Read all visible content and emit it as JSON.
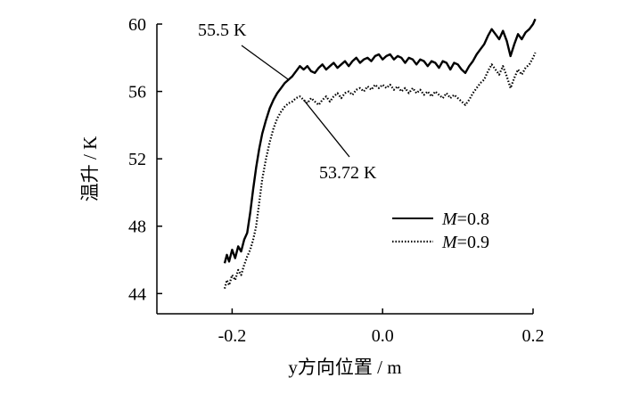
{
  "chart_data": {
    "type": "line",
    "title": "",
    "xlabel": "y方向位置 / m",
    "ylabel": "温升 / K",
    "xlim": [
      -0.3,
      0.2
    ],
    "ylim": [
      42.8,
      60
    ],
    "x_ticks": [
      -0.2,
      0.0,
      0.2
    ],
    "x_tick_labels": [
      "-0.2",
      "0.0",
      "0.2"
    ],
    "y_ticks": [
      44,
      48,
      52,
      56,
      60
    ],
    "y_tick_labels": [
      "44",
      "48",
      "52",
      "56",
      "60"
    ],
    "grid": false,
    "legend_position": "right",
    "series": [
      {
        "name": "M=0.8",
        "name_italic": "M",
        "name_rest": "=0.8",
        "style": "solid",
        "color": "#000000",
        "points": [
          [
            -0.21,
            45.8
          ],
          [
            -0.207,
            46.3
          ],
          [
            -0.204,
            45.9
          ],
          [
            -0.2,
            46.6
          ],
          [
            -0.196,
            46.1
          ],
          [
            -0.192,
            46.8
          ],
          [
            -0.188,
            46.5
          ],
          [
            -0.184,
            47.2
          ],
          [
            -0.18,
            47.6
          ],
          [
            -0.176,
            48.8
          ],
          [
            -0.172,
            50.2
          ],
          [
            -0.168,
            51.5
          ],
          [
            -0.164,
            52.6
          ],
          [
            -0.16,
            53.5
          ],
          [
            -0.155,
            54.3
          ],
          [
            -0.15,
            55.0
          ],
          [
            -0.145,
            55.5
          ],
          [
            -0.14,
            55.9
          ],
          [
            -0.135,
            56.2
          ],
          [
            -0.13,
            56.5
          ],
          [
            -0.125,
            56.7
          ],
          [
            -0.12,
            56.9
          ],
          [
            -0.115,
            57.2
          ],
          [
            -0.11,
            57.5
          ],
          [
            -0.105,
            57.3
          ],
          [
            -0.1,
            57.5
          ],
          [
            -0.095,
            57.2
          ],
          [
            -0.09,
            57.1
          ],
          [
            -0.085,
            57.4
          ],
          [
            -0.08,
            57.6
          ],
          [
            -0.075,
            57.3
          ],
          [
            -0.07,
            57.5
          ],
          [
            -0.065,
            57.7
          ],
          [
            -0.06,
            57.4
          ],
          [
            -0.055,
            57.6
          ],
          [
            -0.05,
            57.8
          ],
          [
            -0.045,
            57.5
          ],
          [
            -0.04,
            57.8
          ],
          [
            -0.035,
            58.0
          ],
          [
            -0.03,
            57.7
          ],
          [
            -0.025,
            57.9
          ],
          [
            -0.02,
            58.0
          ],
          [
            -0.015,
            57.8
          ],
          [
            -0.01,
            58.1
          ],
          [
            -0.005,
            58.2
          ],
          [
            0.0,
            57.9
          ],
          [
            0.005,
            58.1
          ],
          [
            0.01,
            58.2
          ],
          [
            0.015,
            57.9
          ],
          [
            0.02,
            58.1
          ],
          [
            0.025,
            58.0
          ],
          [
            0.03,
            57.7
          ],
          [
            0.035,
            58.0
          ],
          [
            0.04,
            57.9
          ],
          [
            0.045,
            57.6
          ],
          [
            0.05,
            57.9
          ],
          [
            0.055,
            57.8
          ],
          [
            0.06,
            57.5
          ],
          [
            0.065,
            57.8
          ],
          [
            0.07,
            57.7
          ],
          [
            0.075,
            57.4
          ],
          [
            0.08,
            57.8
          ],
          [
            0.085,
            57.7
          ],
          [
            0.09,
            57.3
          ],
          [
            0.095,
            57.7
          ],
          [
            0.1,
            57.6
          ],
          [
            0.105,
            57.3
          ],
          [
            0.11,
            57.1
          ],
          [
            0.115,
            57.5
          ],
          [
            0.12,
            57.8
          ],
          [
            0.125,
            58.2
          ],
          [
            0.13,
            58.5
          ],
          [
            0.135,
            58.8
          ],
          [
            0.14,
            59.3
          ],
          [
            0.145,
            59.7
          ],
          [
            0.15,
            59.4
          ],
          [
            0.155,
            59.1
          ],
          [
            0.16,
            59.6
          ],
          [
            0.165,
            59.0
          ],
          [
            0.17,
            58.1
          ],
          [
            0.175,
            58.8
          ],
          [
            0.18,
            59.4
          ],
          [
            0.185,
            59.1
          ],
          [
            0.19,
            59.5
          ],
          [
            0.195,
            59.7
          ],
          [
            0.2,
            60.0
          ],
          [
            0.203,
            60.3
          ]
        ]
      },
      {
        "name": "M=0.9",
        "name_italic": "M",
        "name_rest": "=0.9",
        "style": "dotted",
        "color": "#000000",
        "points": [
          [
            -0.21,
            44.3
          ],
          [
            -0.207,
            44.8
          ],
          [
            -0.204,
            44.5
          ],
          [
            -0.2,
            45.1
          ],
          [
            -0.196,
            44.8
          ],
          [
            -0.192,
            45.4
          ],
          [
            -0.188,
            45.1
          ],
          [
            -0.184,
            45.7
          ],
          [
            -0.18,
            46.2
          ],
          [
            -0.176,
            46.6
          ],
          [
            -0.172,
            47.2
          ],
          [
            -0.168,
            48.0
          ],
          [
            -0.164,
            49.4
          ],
          [
            -0.16,
            50.8
          ],
          [
            -0.155,
            52.0
          ],
          [
            -0.15,
            53.0
          ],
          [
            -0.145,
            53.8
          ],
          [
            -0.14,
            54.4
          ],
          [
            -0.135,
            54.8
          ],
          [
            -0.13,
            55.1
          ],
          [
            -0.125,
            55.3
          ],
          [
            -0.12,
            55.4
          ],
          [
            -0.115,
            55.6
          ],
          [
            -0.11,
            55.7
          ],
          [
            -0.105,
            55.5
          ],
          [
            -0.1,
            55.3
          ],
          [
            -0.095,
            55.6
          ],
          [
            -0.09,
            55.4
          ],
          [
            -0.085,
            55.2
          ],
          [
            -0.08,
            55.5
          ],
          [
            -0.075,
            55.7
          ],
          [
            -0.07,
            55.4
          ],
          [
            -0.065,
            55.7
          ],
          [
            -0.06,
            55.9
          ],
          [
            -0.055,
            55.6
          ],
          [
            -0.05,
            55.9
          ],
          [
            -0.045,
            56.0
          ],
          [
            -0.04,
            55.8
          ],
          [
            -0.035,
            56.1
          ],
          [
            -0.03,
            56.2
          ],
          [
            -0.025,
            56.0
          ],
          [
            -0.02,
            56.3
          ],
          [
            -0.015,
            56.1
          ],
          [
            -0.01,
            56.4
          ],
          [
            -0.005,
            56.2
          ],
          [
            0.0,
            56.4
          ],
          [
            0.005,
            56.2
          ],
          [
            0.01,
            56.4
          ],
          [
            0.015,
            56.1
          ],
          [
            0.02,
            56.3
          ],
          [
            0.025,
            56.0
          ],
          [
            0.03,
            56.2
          ],
          [
            0.035,
            55.9
          ],
          [
            0.04,
            56.2
          ],
          [
            0.045,
            55.9
          ],
          [
            0.05,
            56.1
          ],
          [
            0.055,
            55.8
          ],
          [
            0.06,
            56.0
          ],
          [
            0.065,
            55.7
          ],
          [
            0.07,
            56.0
          ],
          [
            0.075,
            55.8
          ],
          [
            0.08,
            55.6
          ],
          [
            0.085,
            55.9
          ],
          [
            0.09,
            55.6
          ],
          [
            0.095,
            55.8
          ],
          [
            0.1,
            55.6
          ],
          [
            0.105,
            55.4
          ],
          [
            0.11,
            55.2
          ],
          [
            0.115,
            55.5
          ],
          [
            0.12,
            55.9
          ],
          [
            0.125,
            56.2
          ],
          [
            0.13,
            56.5
          ],
          [
            0.135,
            56.7
          ],
          [
            0.14,
            57.2
          ],
          [
            0.145,
            57.6
          ],
          [
            0.15,
            57.3
          ],
          [
            0.155,
            57.0
          ],
          [
            0.16,
            57.5
          ],
          [
            0.165,
            56.9
          ],
          [
            0.17,
            56.2
          ],
          [
            0.175,
            56.8
          ],
          [
            0.18,
            57.3
          ],
          [
            0.185,
            57.0
          ],
          [
            0.19,
            57.4
          ],
          [
            0.195,
            57.6
          ],
          [
            0.2,
            58.0
          ],
          [
            0.203,
            58.3
          ]
        ]
      }
    ],
    "annotations": [
      {
        "text": "55.5 K",
        "series": "M=0.8",
        "x": -0.125,
        "y": 56.7
      },
      {
        "text": "53.72 K",
        "series": "M=0.9",
        "x": -0.105,
        "y": 55.5
      }
    ]
  }
}
